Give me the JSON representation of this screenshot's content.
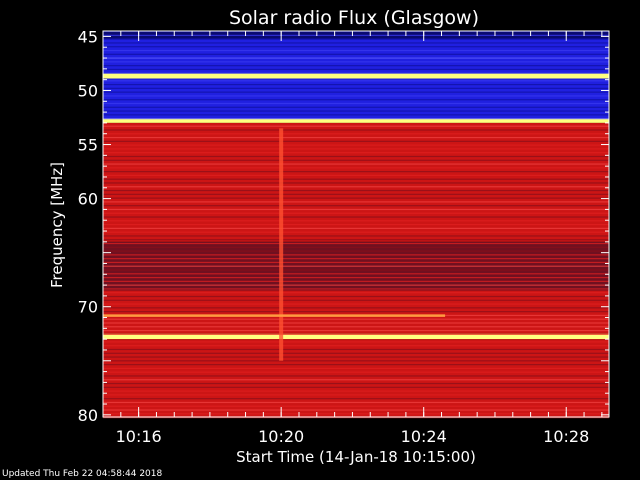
{
  "chart_data": {
    "type": "heatmap",
    "title": "Solar radio Flux (Glasgow)",
    "xlabel": "Start Time (14-Jan-18 10:15:00)",
    "ylabel": "Frequency [MHz]",
    "x_unit": "minutes since start",
    "xlim": [
      0.9,
      15.1
    ],
    "ylim": [
      44.5,
      80.2
    ],
    "x_ticks": [
      {
        "label": "10:16",
        "minute": 1.9
      },
      {
        "label": "10:20",
        "minute": 5.9
      },
      {
        "label": "10:24",
        "minute": 9.9
      },
      {
        "label": "10:28",
        "minute": 13.9
      }
    ],
    "y_ticks": [
      45,
      50,
      55,
      60,
      65,
      70,
      75,
      80
    ],
    "y_tick_labels": [
      "45",
      "50",
      "55",
      "60",
      "",
      "70",
      "",
      "80"
    ],
    "colors": {
      "background": "#000000",
      "low": "#2020e0",
      "mid": "#cc1515",
      "high": "#ffff80"
    },
    "bands": [
      {
        "from": 44.5,
        "to": 45.2,
        "level": "low-dark"
      },
      {
        "from": 45.2,
        "to": 48.4,
        "level": "low"
      },
      {
        "from": 48.4,
        "to": 48.9,
        "level": "high"
      },
      {
        "from": 48.9,
        "to": 52.6,
        "level": "low"
      },
      {
        "from": 52.6,
        "to": 53.0,
        "level": "high"
      },
      {
        "from": 53.0,
        "to": 64.0,
        "level": "mid"
      },
      {
        "from": 64.0,
        "to": 68.5,
        "level": "mid-dark"
      },
      {
        "from": 68.5,
        "to": 72.5,
        "level": "mid"
      },
      {
        "from": 72.5,
        "to": 73.0,
        "level": "high"
      },
      {
        "from": 73.0,
        "to": 80.2,
        "level": "mid"
      }
    ],
    "features": [
      {
        "type": "vertical-streak",
        "minute": 5.9,
        "freq_from": 53.5,
        "freq_to": 75.0
      },
      {
        "type": "horizontal-line",
        "freq": 70.8,
        "minute_from": 0.9,
        "minute_to": 10.5
      }
    ]
  },
  "footer": "Updated Thu Feb 22 04:58:44 2018"
}
